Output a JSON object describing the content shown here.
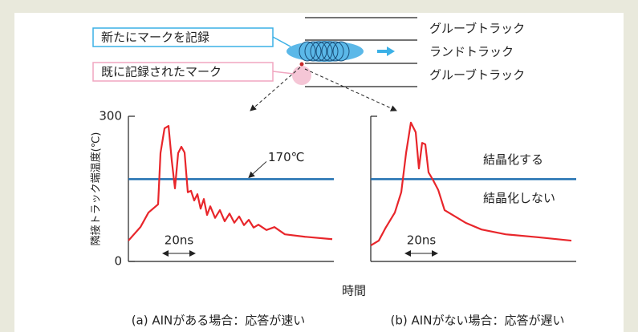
{
  "diagram": {
    "tracks": [
      "グルーブトラック",
      "ランドトラック",
      "グルーブトラック"
    ],
    "new_mark": "新たにマークを記録",
    "recorded_mark": "既に記録されたマーク"
  },
  "xlabel": "時間",
  "chart_data": [
    {
      "type": "line",
      "caption": "(a) AINがある場合：応答が速い",
      "ylabel": "隣接トラック端温度(℃)",
      "x": [
        0,
        7.5,
        12.5,
        18.5,
        20,
        22.5,
        25,
        27,
        29,
        31,
        33,
        35,
        37,
        39,
        41,
        43,
        45,
        47,
        49,
        51,
        54,
        57,
        60,
        63,
        66,
        69,
        72,
        75,
        78,
        81,
        86,
        91,
        97.5,
        110,
        127
      ],
      "series": [
        {
          "color": "#e8262b",
          "values": [
            43,
            71,
            101,
            118,
            224,
            275,
            280,
            209,
            151,
            224,
            237,
            225,
            143,
            146,
            126,
            139,
            109,
            129,
            96,
            114,
            90,
            106,
            83,
            99,
            80,
            93,
            75,
            86,
            70,
            76,
            65,
            71,
            56,
            51,
            46
          ]
        }
      ],
      "xlim": [
        0,
        128
      ],
      "ylim": [
        0,
        300
      ],
      "yticks": [
        0,
        300
      ],
      "threshold": 170,
      "threshold_color": "#1f6fb0",
      "threshold_label": "170℃",
      "scale_bar": {
        "value": 20,
        "label": "20ns"
      }
    },
    {
      "type": "line",
      "caption": "(b) AINがない場合：応答が遅い",
      "x": [
        0,
        5,
        9,
        15,
        19,
        22,
        25,
        28,
        30,
        32,
        34,
        36,
        39,
        42,
        46,
        51,
        59,
        69,
        84,
        104,
        125
      ],
      "series": [
        {
          "color": "#e8262b",
          "values": [
            33,
            43,
            68,
            101,
            143,
            224,
            287,
            267,
            192,
            245,
            242,
            184,
            167,
            148,
            106,
            96,
            80,
            66,
            56,
            50,
            43
          ]
        }
      ],
      "xlim": [
        0,
        128
      ],
      "ylim": [
        0,
        300
      ],
      "threshold": 170,
      "threshold_color": "#1f6fb0",
      "annotations": {
        "above": "結晶化する",
        "below": "結晶化しない"
      },
      "scale_bar": {
        "value": 20,
        "label": "20ns"
      }
    }
  ]
}
